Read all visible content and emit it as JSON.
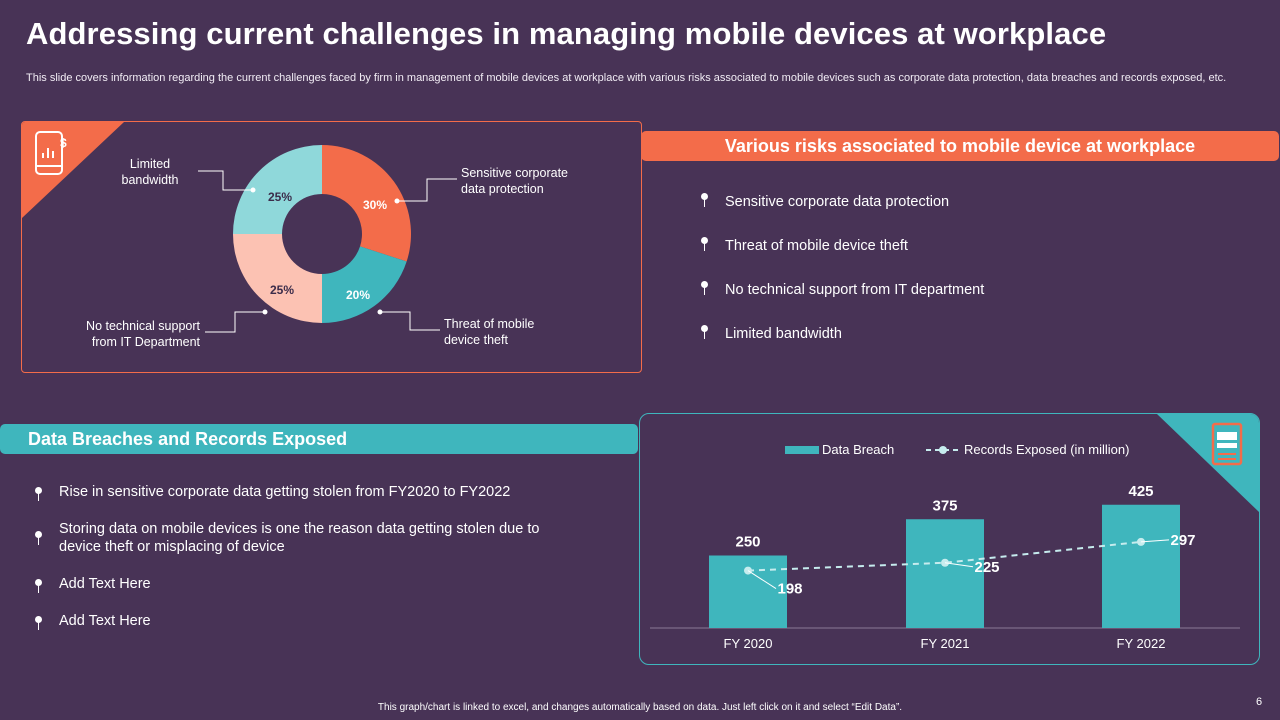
{
  "slide": {
    "title": "Addressing current challenges in managing mobile devices at workplace",
    "subtitle": "This slide covers information regarding the current challenges faced by firm in management of mobile devices at workplace with various risks associated to mobile devices such as corporate data protection, data breaches and records exposed, etc.",
    "footer": "This graph/chart is linked to excel, and changes automatically based on data. Just left click on it and select “Edit Data”.",
    "page_number": "6"
  },
  "donut_labels": {
    "sensitive": [
      "Sensitive corporate",
      "data protection"
    ],
    "theft": [
      "Threat of mobile",
      "device theft"
    ],
    "support": [
      "No technical support",
      "from IT Department"
    ],
    "bandwidth": [
      "Limited",
      "bandwidth"
    ]
  },
  "risks": {
    "header": "Various risks associated to mobile device at workplace",
    "items": [
      "Sensitive corporate data protection",
      "Threat of mobile device theft",
      "No technical support from IT department",
      "Limited bandwidth"
    ]
  },
  "breaches": {
    "header": "Data Breaches and Records Exposed",
    "items": [
      "Rise in sensitive corporate data getting stolen from  FY2020 to FY2022",
      "Storing data on mobile devices is one the reason data getting stolen due to device theft or misplacing of device",
      "Add Text Here",
      "Add Text Here"
    ]
  },
  "colors": {
    "background": "#483356",
    "orange": "#f36c4a",
    "teal": "#3fb6bd",
    "light_teal": "#8fd8da",
    "peach": "#fcc2b3",
    "dashed_line": "#c6ecee"
  },
  "chart_data": [
    {
      "type": "pie",
      "variant": "donut",
      "slices": [
        {
          "label": "Sensitive corporate data protection",
          "value": 30,
          "value_label": "30%",
          "color": "#f36c4a"
        },
        {
          "label": "Threat of mobile device theft",
          "value": 20,
          "value_label": "20%",
          "color": "#3fb6bd"
        },
        {
          "label": "No technical support from IT Department",
          "value": 25,
          "value_label": "25%",
          "color": "#fcc2b3"
        },
        {
          "label": "Limited bandwidth",
          "value": 25,
          "value_label": "25%",
          "color": "#8fd8da"
        }
      ]
    },
    {
      "type": "bar",
      "categories": [
        "FY 2020",
        "FY 2021",
        "FY 2022"
      ],
      "series": [
        {
          "name": "Data Breach",
          "kind": "bar",
          "values": [
            250,
            375,
            425
          ]
        },
        {
          "name": "Records Exposed (in million)",
          "kind": "line",
          "style": "dashed",
          "values": [
            198,
            225,
            297
          ]
        }
      ],
      "ylim": [
        0,
        500
      ],
      "legend": "top",
      "grid": false
    }
  ]
}
